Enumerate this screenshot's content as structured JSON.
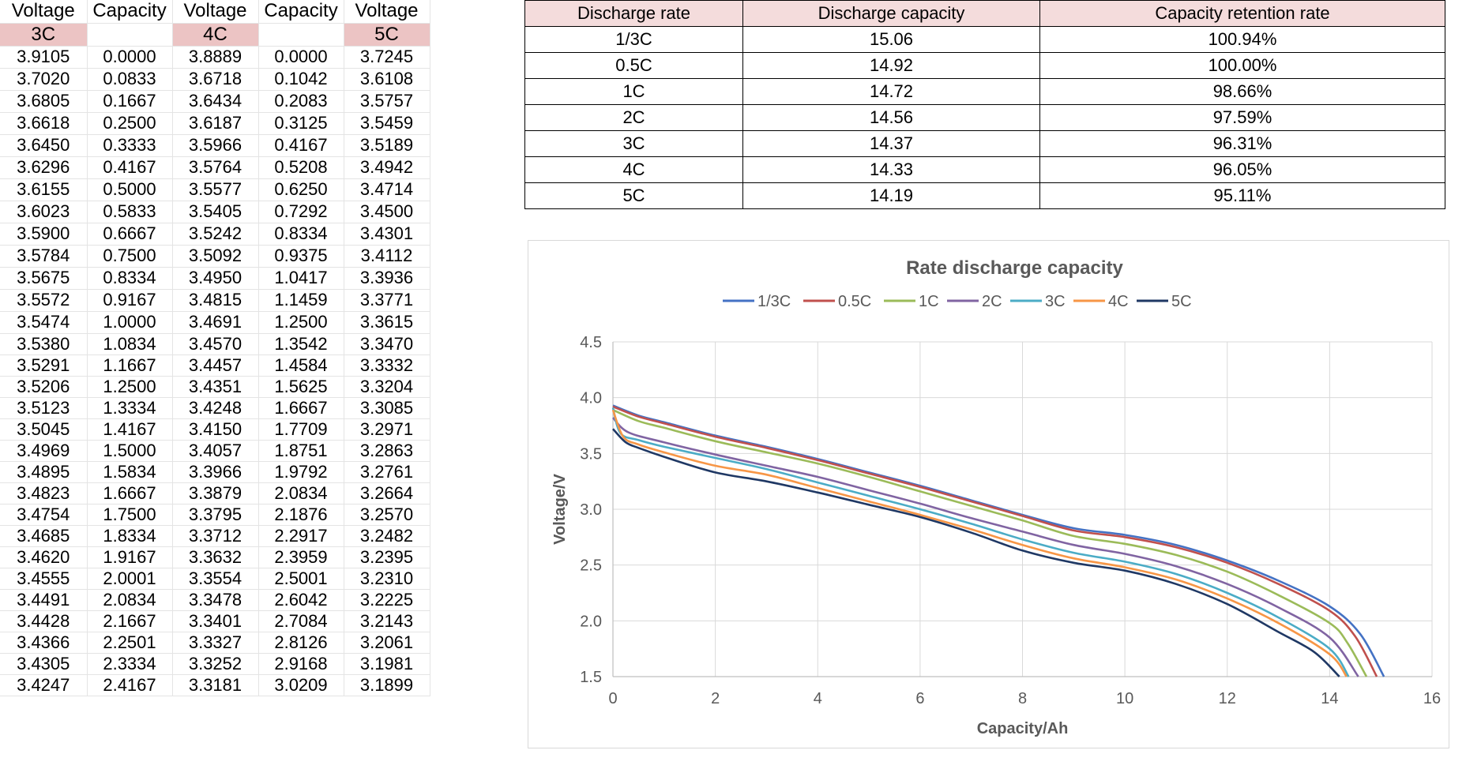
{
  "sheet": {
    "headers": [
      "Voltage",
      "Capacity",
      "Voltage",
      "Capacity",
      "Voltage"
    ],
    "rate_labels": [
      "3C",
      "",
      "4C",
      "",
      "5C"
    ],
    "rows": [
      [
        "3.9105",
        "0.0000",
        "3.8889",
        "0.0000",
        "3.7245"
      ],
      [
        "3.7020",
        "0.0833",
        "3.6718",
        "0.1042",
        "3.6108"
      ],
      [
        "3.6805",
        "0.1667",
        "3.6434",
        "0.2083",
        "3.5757"
      ],
      [
        "3.6618",
        "0.2500",
        "3.6187",
        "0.3125",
        "3.5459"
      ],
      [
        "3.6450",
        "0.3333",
        "3.5966",
        "0.4167",
        "3.5189"
      ],
      [
        "3.6296",
        "0.4167",
        "3.5764",
        "0.5208",
        "3.4942"
      ],
      [
        "3.6155",
        "0.5000",
        "3.5577",
        "0.6250",
        "3.4714"
      ],
      [
        "3.6023",
        "0.5833",
        "3.5405",
        "0.7292",
        "3.4500"
      ],
      [
        "3.5900",
        "0.6667",
        "3.5242",
        "0.8334",
        "3.4301"
      ],
      [
        "3.5784",
        "0.7500",
        "3.5092",
        "0.9375",
        "3.4112"
      ],
      [
        "3.5675",
        "0.8334",
        "3.4950",
        "1.0417",
        "3.3936"
      ],
      [
        "3.5572",
        "0.9167",
        "3.4815",
        "1.1459",
        "3.3771"
      ],
      [
        "3.5474",
        "1.0000",
        "3.4691",
        "1.2500",
        "3.3615"
      ],
      [
        "3.5380",
        "1.0834",
        "3.4570",
        "1.3542",
        "3.3470"
      ],
      [
        "3.5291",
        "1.1667",
        "3.4457",
        "1.4584",
        "3.3332"
      ],
      [
        "3.5206",
        "1.2500",
        "3.4351",
        "1.5625",
        "3.3204"
      ],
      [
        "3.5123",
        "1.3334",
        "3.4248",
        "1.6667",
        "3.3085"
      ],
      [
        "3.5045",
        "1.4167",
        "3.4150",
        "1.7709",
        "3.2971"
      ],
      [
        "3.4969",
        "1.5000",
        "3.4057",
        "1.8751",
        "3.2863"
      ],
      [
        "3.4895",
        "1.5834",
        "3.3966",
        "1.9792",
        "3.2761"
      ],
      [
        "3.4823",
        "1.6667",
        "3.3879",
        "2.0834",
        "3.2664"
      ],
      [
        "3.4754",
        "1.7500",
        "3.3795",
        "2.1876",
        "3.2570"
      ],
      [
        "3.4685",
        "1.8334",
        "3.3712",
        "2.2917",
        "3.2482"
      ],
      [
        "3.4620",
        "1.9167",
        "3.3632",
        "2.3959",
        "3.2395"
      ],
      [
        "3.4555",
        "2.0001",
        "3.3554",
        "2.5001",
        "3.2310"
      ],
      [
        "3.4491",
        "2.0834",
        "3.3478",
        "2.6042",
        "3.2225"
      ],
      [
        "3.4428",
        "2.1667",
        "3.3401",
        "2.7084",
        "3.2143"
      ],
      [
        "3.4366",
        "2.2501",
        "3.3327",
        "2.8126",
        "3.2061"
      ],
      [
        "3.4305",
        "2.3334",
        "3.3252",
        "2.9168",
        "3.1981"
      ],
      [
        "3.4247",
        "2.4167",
        "3.3181",
        "3.0209",
        "3.1899"
      ]
    ]
  },
  "rate_table": {
    "headers": [
      "Discharge rate",
      "Discharge capacity",
      "Capacity retention rate"
    ],
    "rows": [
      [
        "1/3C",
        "15.06",
        "100.94%"
      ],
      [
        "0.5C",
        "14.92",
        "100.00%"
      ],
      [
        "1C",
        "14.72",
        "98.66%"
      ],
      [
        "2C",
        "14.56",
        "97.59%"
      ],
      [
        "3C",
        "14.37",
        "96.31%"
      ],
      [
        "4C",
        "14.33",
        "96.05%"
      ],
      [
        "5C",
        "14.19",
        "95.11%"
      ]
    ]
  },
  "chart_data": {
    "type": "line",
    "title": "Rate discharge capacity",
    "xlabel": "Capacity/Ah",
    "ylabel": "Voltage/V",
    "xlim": [
      0,
      16
    ],
    "ylim": [
      1.5,
      4.5
    ],
    "xticks": [
      "0",
      "2",
      "4",
      "6",
      "8",
      "10",
      "12",
      "14",
      "16"
    ],
    "yticks": [
      "1.5",
      "2.0",
      "2.5",
      "3.0",
      "3.5",
      "4.0",
      "4.5"
    ],
    "grid": true,
    "legend_position": "top",
    "series": [
      {
        "name": "1/3C",
        "color": "#4472c4",
        "x": [
          0,
          0.5,
          1,
          2,
          3,
          4,
          5,
          6,
          7,
          8,
          9,
          10,
          11,
          12,
          13,
          14,
          14.6,
          15.06
        ],
        "y": [
          3.93,
          3.84,
          3.78,
          3.66,
          3.56,
          3.45,
          3.33,
          3.21,
          3.08,
          2.95,
          2.83,
          2.77,
          2.68,
          2.54,
          2.36,
          2.13,
          1.88,
          1.5
        ]
      },
      {
        "name": "0.5C",
        "color": "#c0504d",
        "x": [
          0,
          0.5,
          1,
          2,
          3,
          4,
          5,
          6,
          7,
          8,
          9,
          10,
          11,
          12,
          13,
          14,
          14.5,
          14.92
        ],
        "y": [
          3.92,
          3.83,
          3.77,
          3.65,
          3.55,
          3.44,
          3.32,
          3.2,
          3.07,
          2.94,
          2.81,
          2.75,
          2.66,
          2.52,
          2.33,
          2.09,
          1.86,
          1.5
        ]
      },
      {
        "name": "1C",
        "color": "#9bbb59",
        "x": [
          0,
          0.5,
          1,
          2,
          3,
          4,
          5,
          6,
          7,
          8,
          9,
          10,
          11,
          12,
          13,
          14,
          14.35,
          14.72
        ],
        "y": [
          3.89,
          3.79,
          3.73,
          3.61,
          3.51,
          3.41,
          3.29,
          3.16,
          3.03,
          2.9,
          2.76,
          2.69,
          2.59,
          2.44,
          2.23,
          1.98,
          1.8,
          1.5
        ]
      },
      {
        "name": "2C",
        "color": "#8064a2",
        "x": [
          0,
          0.3,
          1,
          2,
          3,
          4,
          5,
          6,
          7,
          8,
          9,
          10,
          11,
          12,
          13,
          14,
          14.56
        ],
        "y": [
          3.82,
          3.69,
          3.6,
          3.49,
          3.39,
          3.29,
          3.17,
          3.05,
          2.92,
          2.8,
          2.68,
          2.6,
          2.49,
          2.33,
          2.12,
          1.85,
          1.5
        ]
      },
      {
        "name": "3C",
        "color": "#4bacc6",
        "x": [
          0,
          0.15,
          0.5,
          1,
          2,
          3,
          4,
          5,
          6,
          7,
          8,
          9,
          10,
          11,
          12,
          13,
          14,
          14.37
        ],
        "y": [
          3.91,
          3.68,
          3.62,
          3.56,
          3.46,
          3.36,
          3.24,
          3.12,
          3.0,
          2.87,
          2.73,
          2.61,
          2.53,
          2.42,
          2.25,
          2.03,
          1.75,
          1.5
        ]
      },
      {
        "name": "4C",
        "color": "#f79646",
        "x": [
          0,
          0.2,
          0.5,
          1,
          2,
          3,
          4,
          5,
          6,
          7,
          8,
          9,
          10,
          11,
          12,
          13,
          14,
          14.33
        ],
        "y": [
          3.89,
          3.65,
          3.58,
          3.51,
          3.39,
          3.31,
          3.19,
          3.07,
          2.95,
          2.82,
          2.68,
          2.56,
          2.48,
          2.37,
          2.2,
          1.98,
          1.7,
          1.5
        ]
      },
      {
        "name": "5C",
        "color": "#1f3864",
        "x": [
          0,
          0.25,
          0.5,
          1,
          2,
          3,
          4,
          5,
          6,
          7,
          8,
          9,
          10,
          11,
          12,
          13,
          13.7,
          14.19
        ],
        "y": [
          3.72,
          3.6,
          3.55,
          3.47,
          3.33,
          3.25,
          3.15,
          3.04,
          2.93,
          2.79,
          2.63,
          2.52,
          2.45,
          2.33,
          2.15,
          1.9,
          1.72,
          1.5
        ]
      }
    ]
  }
}
